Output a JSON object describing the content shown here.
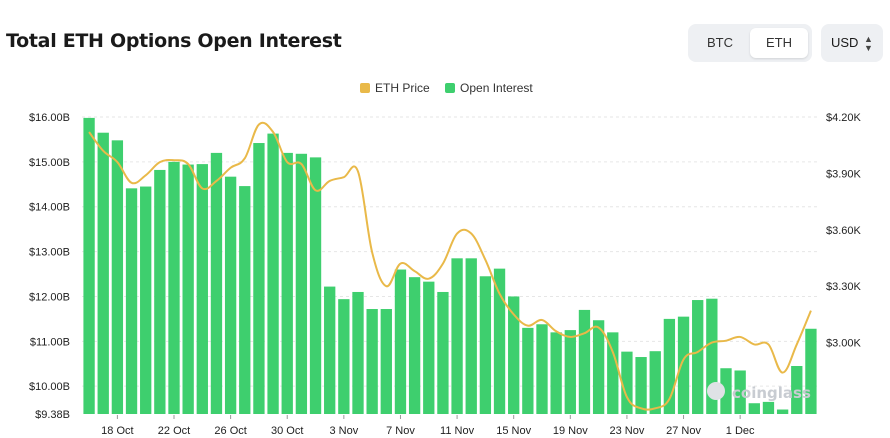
{
  "header": {
    "title": "Total ETH Options Open Interest"
  },
  "toggle": {
    "btc_label": "BTC",
    "eth_label": "ETH",
    "currency": "USD"
  },
  "colors": {
    "price": "#e9b949",
    "oi": "#3ecf6e",
    "grid": "#e6e6e6"
  },
  "watermark": "coinglass",
  "chart_data": {
    "type": "bar",
    "legend": [
      "ETH Price",
      "Open Interest"
    ],
    "legend_position": "top-center",
    "x_labels": [
      "18 Oct",
      "22 Oct",
      "26 Oct",
      "30 Oct",
      "3 Nov",
      "7 Nov",
      "11 Nov",
      "15 Nov",
      "19 Nov",
      "23 Nov",
      "27 Nov",
      "1 Dec"
    ],
    "y_left": {
      "ticks": [
        "$9.38B",
        "$10.00B",
        "$11.00B",
        "$12.00B",
        "$13.00B",
        "$14.00B",
        "$15.00B",
        "$16.00B"
      ],
      "min": 9.38,
      "max": 16.0,
      "unit": "B USD"
    },
    "y_right": {
      "ticks": [
        "$3.00K",
        "$3.30K",
        "$3.60K",
        "$3.90K",
        "$4.20K"
      ],
      "min": 2.62,
      "max": 4.2,
      "unit": "K USD"
    },
    "grid": true,
    "series": [
      {
        "name": "Open Interest",
        "type": "bar",
        "axis": "left",
        "values": [
          15.98,
          15.65,
          15.48,
          14.41,
          14.45,
          14.82,
          15.0,
          14.94,
          14.95,
          15.2,
          14.67,
          14.46,
          15.42,
          15.63,
          15.2,
          15.18,
          15.1,
          12.22,
          11.94,
          12.1,
          11.72,
          11.72,
          12.6,
          12.43,
          12.33,
          12.1,
          12.85,
          12.85,
          12.45,
          12.62,
          12.0,
          11.3,
          11.38,
          11.2,
          11.25,
          11.7,
          11.47,
          11.2,
          10.77,
          10.65,
          10.78,
          11.5,
          11.55,
          11.92,
          11.95,
          10.4,
          10.35,
          9.62,
          9.65,
          9.48,
          10.45,
          11.28
        ]
      },
      {
        "name": "ETH Price",
        "type": "line",
        "axis": "right",
        "values": [
          4.12,
          4.02,
          3.96,
          3.85,
          3.89,
          3.96,
          3.97,
          3.95,
          3.82,
          3.86,
          3.93,
          3.98,
          4.16,
          4.12,
          3.96,
          3.95,
          3.81,
          3.86,
          3.88,
          3.91,
          3.48,
          3.3,
          3.42,
          3.38,
          3.34,
          3.42,
          3.58,
          3.58,
          3.44,
          3.26,
          3.15,
          3.09,
          3.12,
          3.06,
          3.03,
          3.05,
          3.08,
          2.95,
          2.71,
          2.65,
          2.65,
          2.7,
          2.91,
          2.95,
          3.0,
          3.01,
          3.03,
          2.99,
          2.99,
          2.84,
          2.99,
          3.17
        ]
      }
    ]
  }
}
